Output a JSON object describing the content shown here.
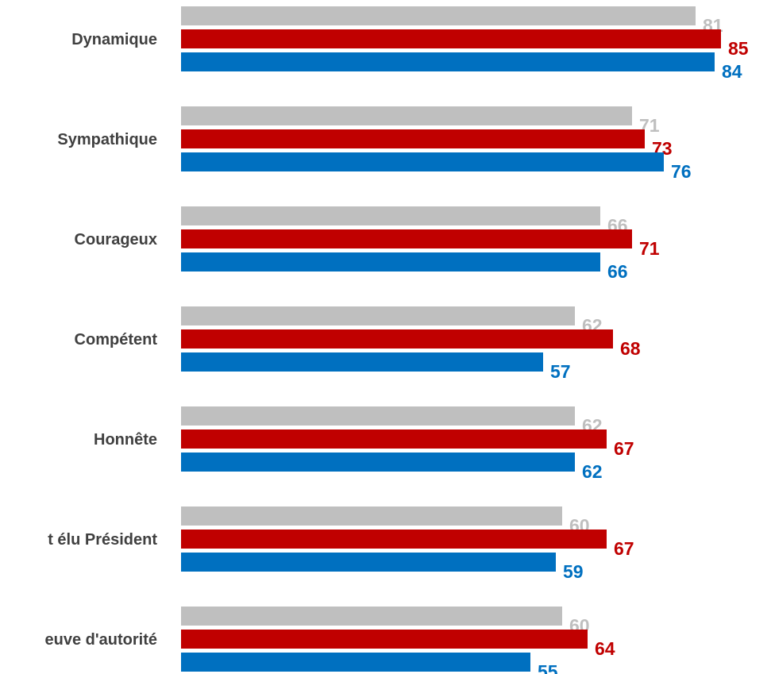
{
  "chart_data": {
    "type": "bar",
    "orientation": "horizontal",
    "categories": [
      "Dynamique",
      "Sympathique",
      "Courageux",
      "Compétent",
      "Honnête",
      "t élu Président",
      "euve d'autorité"
    ],
    "series": [
      {
        "color": "#bfbfbf",
        "values": [
          81,
          71,
          66,
          62,
          62,
          60,
          60
        ]
      },
      {
        "color": "#c00000",
        "values": [
          85,
          73,
          71,
          68,
          67,
          67,
          64
        ]
      },
      {
        "color": "#0070c0",
        "values": [
          84,
          76,
          66,
          57,
          62,
          59,
          55
        ]
      }
    ],
    "xlim": [
      0,
      85
    ],
    "grid": false,
    "legend": "none"
  }
}
